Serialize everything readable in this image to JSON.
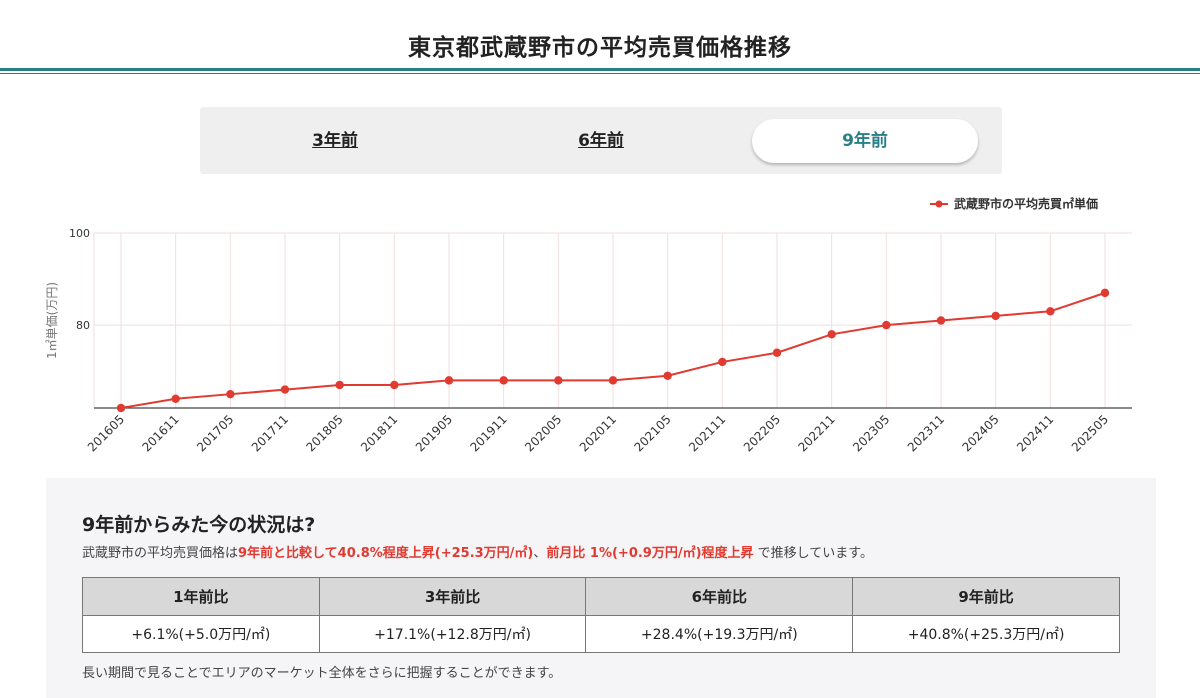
{
  "header": {
    "title": "東京都武蔵野市の平均売買価格推移"
  },
  "tabs": [
    {
      "label": "3年前",
      "active": false
    },
    {
      "label": "6年前",
      "active": false
    },
    {
      "label": "9年前",
      "active": true
    }
  ],
  "chart_data": {
    "type": "line",
    "title": "",
    "ylabel": "1㎡単価(万円)",
    "xlabel": "",
    "ylim": [
      62,
      100
    ],
    "yticks": [
      80,
      100
    ],
    "legend_position": "top-right",
    "grid": true,
    "categories": [
      "201605",
      "201611",
      "201705",
      "201711",
      "201805",
      "201811",
      "201905",
      "201911",
      "202005",
      "202011",
      "202105",
      "202111",
      "202205",
      "202211",
      "202305",
      "202311",
      "202405",
      "202411",
      "202505"
    ],
    "series": [
      {
        "name": "武蔵野市の平均売買㎡単価",
        "color": "#e03a31",
        "values": [
          62,
          64,
          65,
          66,
          67,
          67,
          68,
          68,
          68,
          68,
          69,
          72,
          74,
          78,
          80,
          81,
          82,
          83,
          87
        ]
      }
    ]
  },
  "summary": {
    "heading": "9年前からみた今の状況は?",
    "text_prefix": "武蔵野市の平均売買価格は",
    "text_highlight_1": "9年前と比較して40.8%程度上昇(+25.3万円/㎡)",
    "text_separator": "、",
    "text_highlight_2": "前月比 1%(+0.9万円/㎡)程度上昇",
    "text_suffix": " で推移しています。",
    "table_headers": [
      "1年前比",
      "3年前比",
      "6年前比",
      "9年前比"
    ],
    "table_values": [
      "+6.1%(+5.0万円/㎡)",
      "+17.1%(+12.8万円/㎡)",
      "+28.4%(+19.3万円/㎡)",
      "+40.8%(+25.3万円/㎡)"
    ],
    "note": "長い期間で見ることでエリアのマーケット全体をさらに把握することができます。"
  }
}
